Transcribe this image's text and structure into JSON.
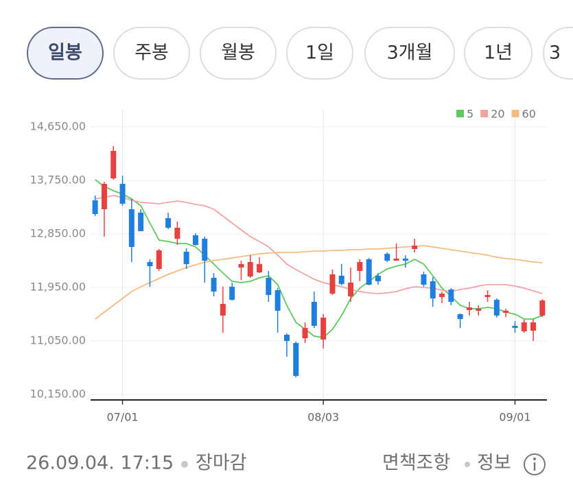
{
  "tabs": [
    {
      "label": "일봉",
      "selected": true
    },
    {
      "label": "주봉",
      "selected": false
    },
    {
      "label": "월봉",
      "selected": false
    },
    {
      "label": "1일",
      "selected": false
    },
    {
      "label": "3개월",
      "selected": false
    },
    {
      "label": "1년",
      "selected": false
    },
    {
      "label": "3",
      "selected": false
    }
  ],
  "chart_data": {
    "type": "candlestick",
    "categories": [
      null,
      null,
      null,
      "07/01",
      null,
      null,
      null,
      null,
      null,
      null,
      null,
      null,
      null,
      null,
      null,
      null,
      null,
      null,
      null,
      null,
      null,
      null,
      null,
      null,
      null,
      "08/03",
      null,
      null,
      null,
      null,
      null,
      null,
      null,
      null,
      null,
      null,
      null,
      null,
      null,
      null,
      null,
      null,
      null,
      null,
      null,
      null,
      "09/01",
      null,
      null,
      null
    ],
    "open": [
      13415,
      13265,
      13785,
      13692,
      13265,
      13208,
      12377,
      12262,
      13115,
      12769,
      12550,
      12827,
      12769,
      12112,
      11477,
      11962,
      12285,
      12135,
      12204,
      12112,
      11904,
      11154,
      11015,
      11096,
      11708,
      11073,
      11846,
      12146,
      11800,
      12227,
      12423,
      12146,
      12515,
      12400,
      12435,
      12596,
      12169,
      12054,
      11788,
      11915,
      11500,
      11569,
      11558,
      11788,
      11742,
      11523,
      11304,
      11212,
      11223,
      11477
    ],
    "high": [
      13496,
      13727,
      14327,
      13831,
      13439,
      13265,
      12423,
      12596,
      13208,
      13058,
      12608,
      12862,
      12804,
      12192,
      11962,
      12031,
      12400,
      12492,
      12458,
      12227,
      11939,
      11177,
      11038,
      11362,
      11881,
      11500,
      12250,
      12342,
      12285,
      12423,
      12446,
      12192,
      12538,
      12688,
      12492,
      12769,
      12215,
      12123,
      11881,
      11939,
      11512,
      11708,
      11650,
      11904,
      11765,
      11592,
      11385,
      11408,
      11419,
      11754
    ],
    "low": [
      13150,
      12804,
      13762,
      13323,
      12377,
      12896,
      11962,
      12227,
      12931,
      12665,
      12262,
      12654,
      12031,
      11800,
      11188,
      11731,
      12077,
      12112,
      12192,
      11708,
      11188,
      10785,
      10438,
      11015,
      11269,
      10923,
      11823,
      11985,
      11708,
      12054,
      11985,
      11996,
      12377,
      12400,
      12285,
      12538,
      11962,
      11627,
      11685,
      11650,
      11269,
      11477,
      11477,
      11708,
      11442,
      11454,
      11188,
      11188,
      11050,
      11454
    ],
    "close": [
      13185,
      13692,
      14246,
      13358,
      12631,
      12896,
      12308,
      12573,
      12954,
      12954,
      12342,
      12665,
      12400,
      11881,
      11673,
      11742,
      12342,
      12377,
      12342,
      11823,
      11558,
      11050,
      10462,
      11269,
      11304,
      11442,
      12169,
      12008,
      12031,
      12377,
      11996,
      12054,
      12400,
      12435,
      12400,
      12654,
      11996,
      11765,
      11846,
      11708,
      11419,
      11615,
      11592,
      11823,
      11477,
      11558,
      11269,
      11362,
      11362,
      11731
    ],
    "up_color": "#e8403e",
    "down_color": "#1f7fe0",
    "series": [
      {
        "name": "5",
        "color": "#5cc95c",
        "values": [
          13762,
          13646,
          13577,
          13519,
          13439,
          13323,
          13035,
          12746,
          12723,
          12688,
          12688,
          12631,
          12492,
          12342,
          12192,
          12054,
          12031,
          12054,
          12112,
          12146,
          11996,
          11650,
          11362,
          11246,
          11131,
          11108,
          11246,
          11477,
          11765,
          11938,
          12054,
          12169,
          12262,
          12308,
          12342,
          12423,
          12342,
          12146,
          11938,
          11800,
          11650,
          11592,
          11592,
          11615,
          11592,
          11535,
          11500,
          11419,
          11419,
          11477
        ]
      },
      {
        "name": "20",
        "color": "#f2a2a2",
        "values": [
          13439,
          13462,
          13496,
          13462,
          13415,
          13381,
          13369,
          13358,
          13381,
          13404,
          13381,
          13346,
          13323,
          13265,
          13150,
          13035,
          12919,
          12804,
          12723,
          12631,
          12492,
          12342,
          12250,
          12169,
          12088,
          12031,
          11996,
          11962,
          11915,
          11881,
          11858,
          11846,
          11858,
          11881,
          11927,
          11962,
          11950,
          11938,
          11904,
          11881,
          11915,
          11938,
          11973,
          11996,
          11996,
          11996,
          11973,
          11938,
          11892,
          11846
        ]
      },
      {
        "name": "60",
        "color": "#f6b980",
        "values": [
          11419,
          11535,
          11650,
          11765,
          11881,
          11962,
          12031,
          12100,
          12169,
          12227,
          12285,
          12331,
          12377,
          12400,
          12423,
          12446,
          12469,
          12492,
          12515,
          12527,
          12538,
          12538,
          12538,
          12550,
          12562,
          12562,
          12573,
          12573,
          12585,
          12585,
          12596,
          12596,
          12608,
          12619,
          12631,
          12642,
          12654,
          12631,
          12608,
          12585,
          12562,
          12538,
          12515,
          12492,
          12458,
          12435,
          12423,
          12400,
          12377,
          12365
        ]
      }
    ],
    "ylim": [
      10058,
      14938
    ],
    "yticks": [
      {
        "value": 10150,
        "label": "10,150.00"
      },
      {
        "value": 11050,
        "label": "11,050.00"
      },
      {
        "value": 11950,
        "label": "11,950.00"
      },
      {
        "value": 12850,
        "label": "12,850.00"
      },
      {
        "value": 13750,
        "label": "13,750.00"
      },
      {
        "value": 14650,
        "label": "14,650.00"
      }
    ],
    "grid": true
  },
  "footer": {
    "timestamp": "26.09.04. 17:15",
    "status": "장마감",
    "disclaimer": "면책조항",
    "info": "정보"
  }
}
